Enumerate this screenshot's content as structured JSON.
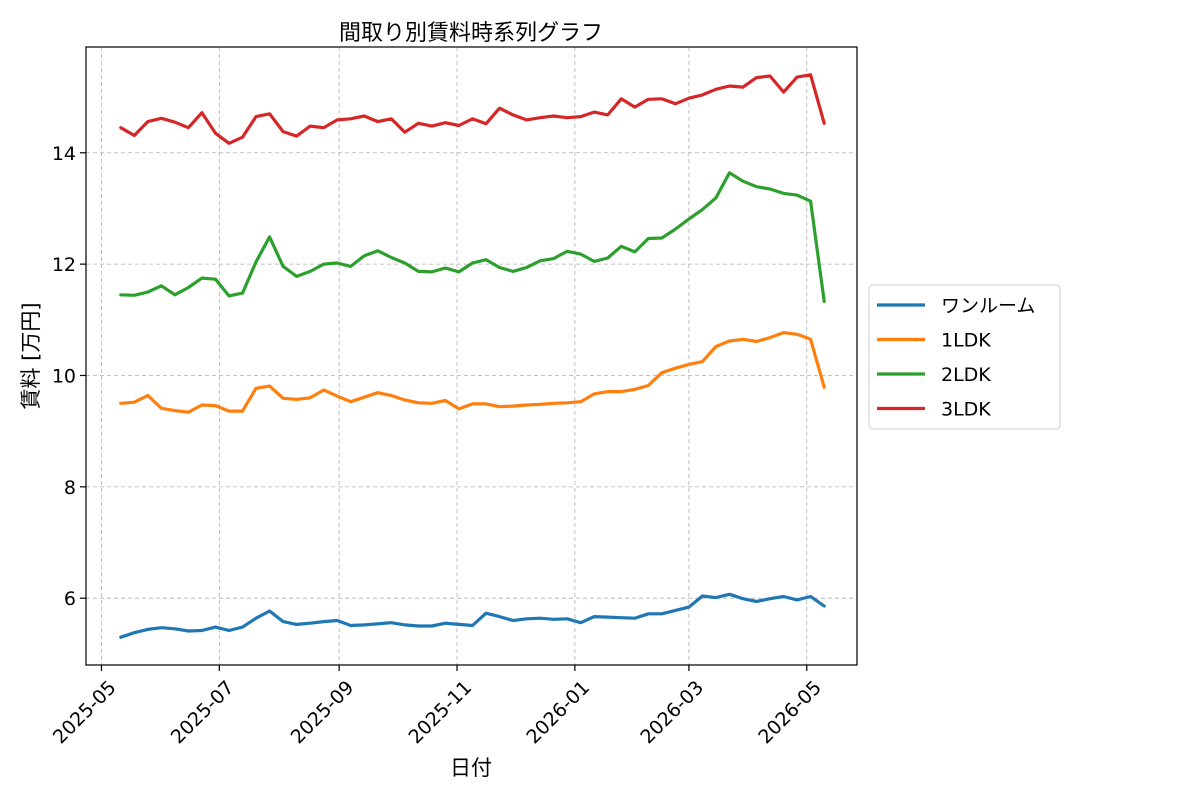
{
  "chart_data": {
    "type": "line",
    "title": "間取り別賃料時系列グラフ",
    "xlabel": "日付",
    "ylabel": "賃料 [万円]",
    "x_tick_labels": [
      "2025-05",
      "2025-07",
      "2025-09",
      "2025-11",
      "2026-01",
      "2026-03",
      "2026-05"
    ],
    "x_tick_values": [
      "2025-05-01",
      "2025-07-01",
      "2025-09-01",
      "2025-11-01",
      "2026-01-01",
      "2026-03-01",
      "2026-05-01"
    ],
    "y_tick_labels": [
      "6",
      "8",
      "10",
      "12",
      "14"
    ],
    "y_tick_values": [
      6,
      8,
      10,
      12,
      14
    ],
    "xlim": [
      "2025-04-23",
      "2026-05-27"
    ],
    "ylim": [
      4.8,
      15.9
    ],
    "grid": true,
    "legend_position": "right-outside",
    "x": [
      "2025-05-11",
      "2025-05-18",
      "2025-05-25",
      "2025-06-01",
      "2025-06-08",
      "2025-06-15",
      "2025-06-22",
      "2025-06-29",
      "2025-07-06",
      "2025-07-13",
      "2025-07-20",
      "2025-07-27",
      "2025-08-03",
      "2025-08-10",
      "2025-08-17",
      "2025-08-24",
      "2025-08-31",
      "2025-09-07",
      "2025-09-14",
      "2025-09-21",
      "2025-09-28",
      "2025-10-05",
      "2025-10-12",
      "2025-10-19",
      "2025-10-26",
      "2025-11-02",
      "2025-11-09",
      "2025-11-16",
      "2025-11-23",
      "2025-11-30",
      "2025-12-07",
      "2025-12-14",
      "2025-12-21",
      "2025-12-28",
      "2026-01-04",
      "2026-01-11",
      "2026-01-18",
      "2026-01-25",
      "2026-02-01",
      "2026-02-08",
      "2026-02-15",
      "2026-02-22",
      "2026-03-01",
      "2026-03-08",
      "2026-03-15",
      "2026-03-22",
      "2026-03-29",
      "2026-04-05",
      "2026-04-12",
      "2026-04-19",
      "2026-04-26",
      "2026-05-03",
      "2026-05-10"
    ],
    "series": [
      {
        "name": "ワンルーム",
        "color": "#1f77b4",
        "values": [
          5.3,
          5.38,
          5.44,
          5.47,
          5.45,
          5.41,
          5.42,
          5.48,
          5.42,
          5.48,
          5.64,
          5.77,
          5.58,
          5.53,
          5.55,
          5.58,
          5.6,
          5.51,
          5.52,
          5.54,
          5.56,
          5.52,
          5.5,
          5.5,
          5.55,
          5.53,
          5.51,
          5.73,
          5.67,
          5.6,
          5.63,
          5.64,
          5.62,
          5.63,
          5.56,
          5.67,
          5.66,
          5.65,
          5.64,
          5.72,
          5.72,
          5.78,
          5.84,
          6.04,
          6.01,
          6.07,
          5.99,
          5.94,
          5.99,
          6.03,
          5.97,
          6.03,
          5.86
        ]
      },
      {
        "name": "1LDK",
        "color": "#ff7f0e",
        "values": [
          9.5,
          9.52,
          9.64,
          9.41,
          9.37,
          9.34,
          9.47,
          9.46,
          9.36,
          9.36,
          9.77,
          9.81,
          9.59,
          9.57,
          9.6,
          9.74,
          9.63,
          9.53,
          9.61,
          9.69,
          9.64,
          9.56,
          9.51,
          9.5,
          9.55,
          9.4,
          9.49,
          9.49,
          9.44,
          9.45,
          9.47,
          9.48,
          9.5,
          9.51,
          9.53,
          9.67,
          9.71,
          9.71,
          9.75,
          9.82,
          10.05,
          10.13,
          10.2,
          10.25,
          10.52,
          10.62,
          10.65,
          10.61,
          10.68,
          10.77,
          10.74,
          10.65,
          9.79
        ]
      },
      {
        "name": "2LDK",
        "color": "#2ca02c",
        "values": [
          11.45,
          11.44,
          11.5,
          11.61,
          11.45,
          11.58,
          11.75,
          11.73,
          11.43,
          11.48,
          12.04,
          12.49,
          11.96,
          11.78,
          11.87,
          12.0,
          12.02,
          11.96,
          12.15,
          12.24,
          12.12,
          12.02,
          11.87,
          11.86,
          11.93,
          11.86,
          12.02,
          12.08,
          11.94,
          11.87,
          11.94,
          12.06,
          12.1,
          12.23,
          12.18,
          12.05,
          12.11,
          12.32,
          12.22,
          12.46,
          12.47,
          12.63,
          12.81,
          12.98,
          13.19,
          13.64,
          13.49,
          13.39,
          13.35,
          13.27,
          13.24,
          13.13,
          11.33
        ]
      },
      {
        "name": "3LDK",
        "color": "#d62728",
        "values": [
          14.45,
          14.31,
          14.56,
          14.62,
          14.55,
          14.45,
          14.72,
          14.35,
          14.17,
          14.28,
          14.65,
          14.7,
          14.38,
          14.3,
          14.48,
          14.45,
          14.59,
          14.61,
          14.66,
          14.56,
          14.61,
          14.37,
          14.53,
          14.48,
          14.54,
          14.49,
          14.61,
          14.52,
          14.8,
          14.68,
          14.59,
          14.63,
          14.66,
          14.63,
          14.65,
          14.73,
          14.68,
          14.97,
          14.82,
          14.96,
          14.97,
          14.88,
          14.98,
          15.04,
          15.14,
          15.2,
          15.18,
          15.35,
          15.38,
          15.09,
          15.36,
          15.4,
          14.53
        ]
      }
    ]
  }
}
